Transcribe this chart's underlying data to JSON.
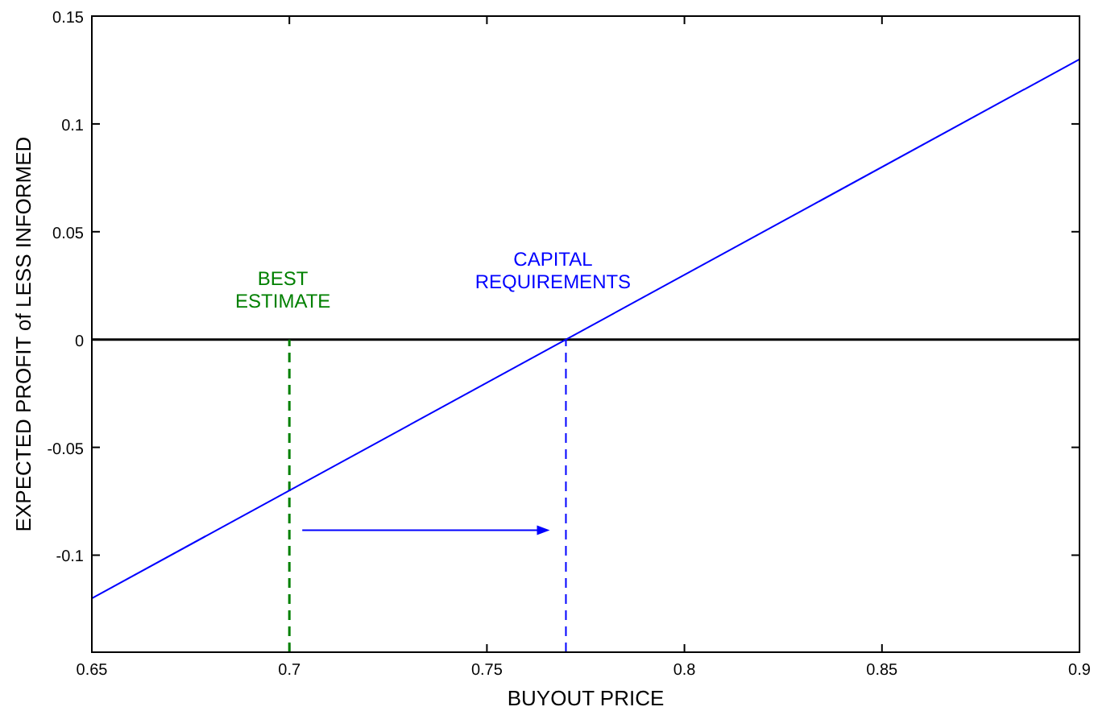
{
  "chart_data": {
    "type": "line",
    "xlabel": "BUYOUT PRICE",
    "ylabel": "EXPECTED PROFIT of LESS INFORMED",
    "x": [
      0.65,
      0.9
    ],
    "series": [
      {
        "color": "#0000ff",
        "values": [
          -0.12,
          0.13
        ]
      }
    ],
    "xlim": [
      0.65,
      0.9
    ],
    "xticks": [
      0.65,
      0.7,
      0.75,
      0.8,
      0.85,
      0.9
    ],
    "ylim": [
      -0.145,
      0.15
    ],
    "yticks": [
      -0.1,
      -0.05,
      0,
      0.05,
      0.1,
      0.15
    ],
    "grid": false,
    "marker": "none",
    "line_style": "solid",
    "ref_lines": [
      {
        "axis": "y",
        "value": 0,
        "color": "#000000",
        "line_style": "solid"
      },
      {
        "axis": "x",
        "value": 0.7,
        "label": "BEST ESTIMATE",
        "color": "#008000",
        "line_style": "dashed"
      },
      {
        "axis": "x",
        "value": 0.77,
        "label": "CAPITAL REQUIREMENTS",
        "color": "#0000ff",
        "line_style": "dashed"
      }
    ]
  }
}
